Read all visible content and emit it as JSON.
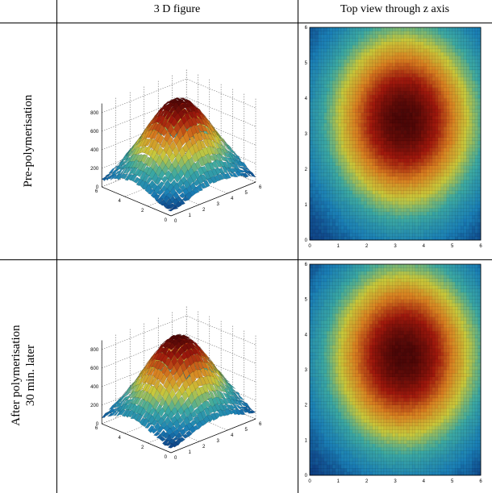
{
  "header": {
    "col1": "3 D figure",
    "col2": "Top view through z axis"
  },
  "rows": [
    {
      "label_lines": [
        "Pre-polymerisation"
      ]
    },
    {
      "label_lines": [
        "After polymerisation",
        "30 min. later"
      ]
    }
  ],
  "surface_plot": {
    "z_ticks": [
      "0",
      "200",
      "400",
      "600",
      "800"
    ],
    "y_ticks": [
      "6",
      "4",
      "2",
      "0"
    ],
    "x_ticks": [
      "0",
      "1",
      "2",
      "3",
      "4",
      "5",
      "6"
    ],
    "colormap": [
      "#08246e",
      "#1a7fb6",
      "#3ca9a2",
      "#c9c83a",
      "#d98020",
      "#a0180c",
      "#4a0606"
    ]
  },
  "top_view": {
    "x_ticks": [
      "0",
      "1",
      "2",
      "3",
      "4",
      "5",
      "6"
    ],
    "y_ticks": [
      "0",
      "1",
      "2",
      "3",
      "4",
      "5",
      "6"
    ]
  }
}
